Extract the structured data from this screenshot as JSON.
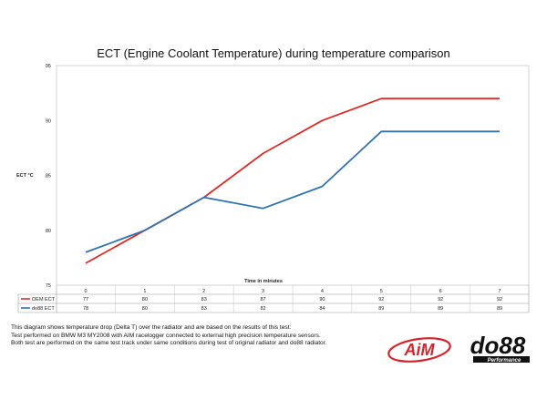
{
  "chart_data": {
    "type": "line",
    "title": "ECT (Engine Coolant Temperature) during temperature comparison",
    "xlabel": "Time in minutes",
    "ylabel": "ECT °C",
    "x": [
      0,
      1,
      2,
      3,
      4,
      5,
      6,
      7
    ],
    "ylim": [
      75,
      95
    ],
    "yticks": [
      75,
      80,
      85,
      90,
      95
    ],
    "grid": false,
    "legend": "data-table-left",
    "series": [
      {
        "name": "OEM ECT",
        "color": "#e02a26",
        "values": [
          77,
          80,
          83,
          87,
          90,
          92,
          92,
          92
        ]
      },
      {
        "name": "do88 ECT",
        "color": "#2f73b5",
        "values": [
          78,
          80,
          83,
          82,
          84,
          89,
          89,
          89
        ]
      }
    ]
  },
  "description": {
    "line1": "This diagram shows temperature drop (Delta T) over the radiator and are based on the results of this test:",
    "line2": "Test performed on BMW M3 MY2008 with AIM racelogger connected to external high precision temperature sensors.",
    "line3": "Both test are performed on the same test track under same conditions during test of original radiator and do88 radiator."
  },
  "logos": {
    "aim": "AiM",
    "do88": "do88",
    "do88_tagline": "Performance"
  }
}
